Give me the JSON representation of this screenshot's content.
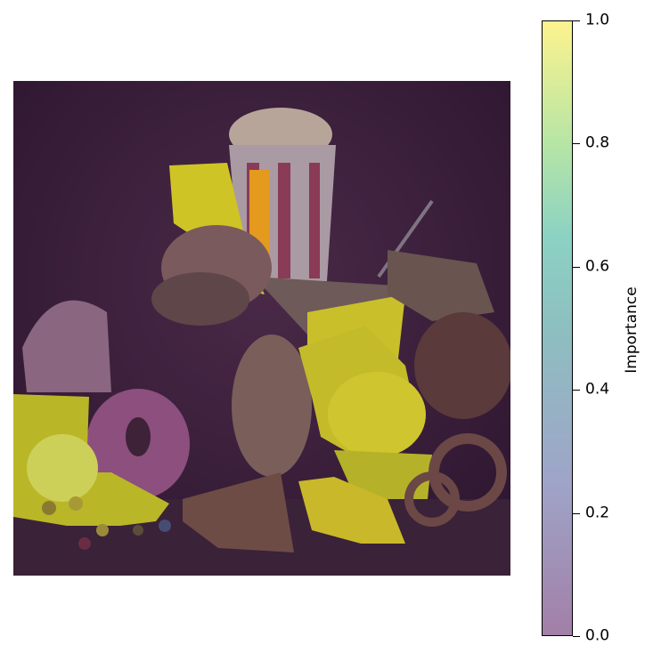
{
  "colorbar": {
    "label": "Importance",
    "ticks": [
      {
        "value": 0.0,
        "label": "0.0"
      },
      {
        "value": 0.2,
        "label": "0.2"
      },
      {
        "value": 0.4,
        "label": "0.4"
      },
      {
        "value": 0.6,
        "label": "0.6"
      },
      {
        "value": 0.8,
        "label": "0.8"
      },
      {
        "value": 1.0,
        "label": "1.0"
      }
    ],
    "range": [
      0.0,
      1.0
    ],
    "colormap": [
      "#440154",
      "#3b528b",
      "#21918c",
      "#5ec962",
      "#fde725"
    ],
    "overlay_alpha": 0.5
  },
  "image": {
    "description_icon": "food-saliency-image",
    "low_color": "#3d1c3d",
    "high_color": "#d9d22a"
  }
}
